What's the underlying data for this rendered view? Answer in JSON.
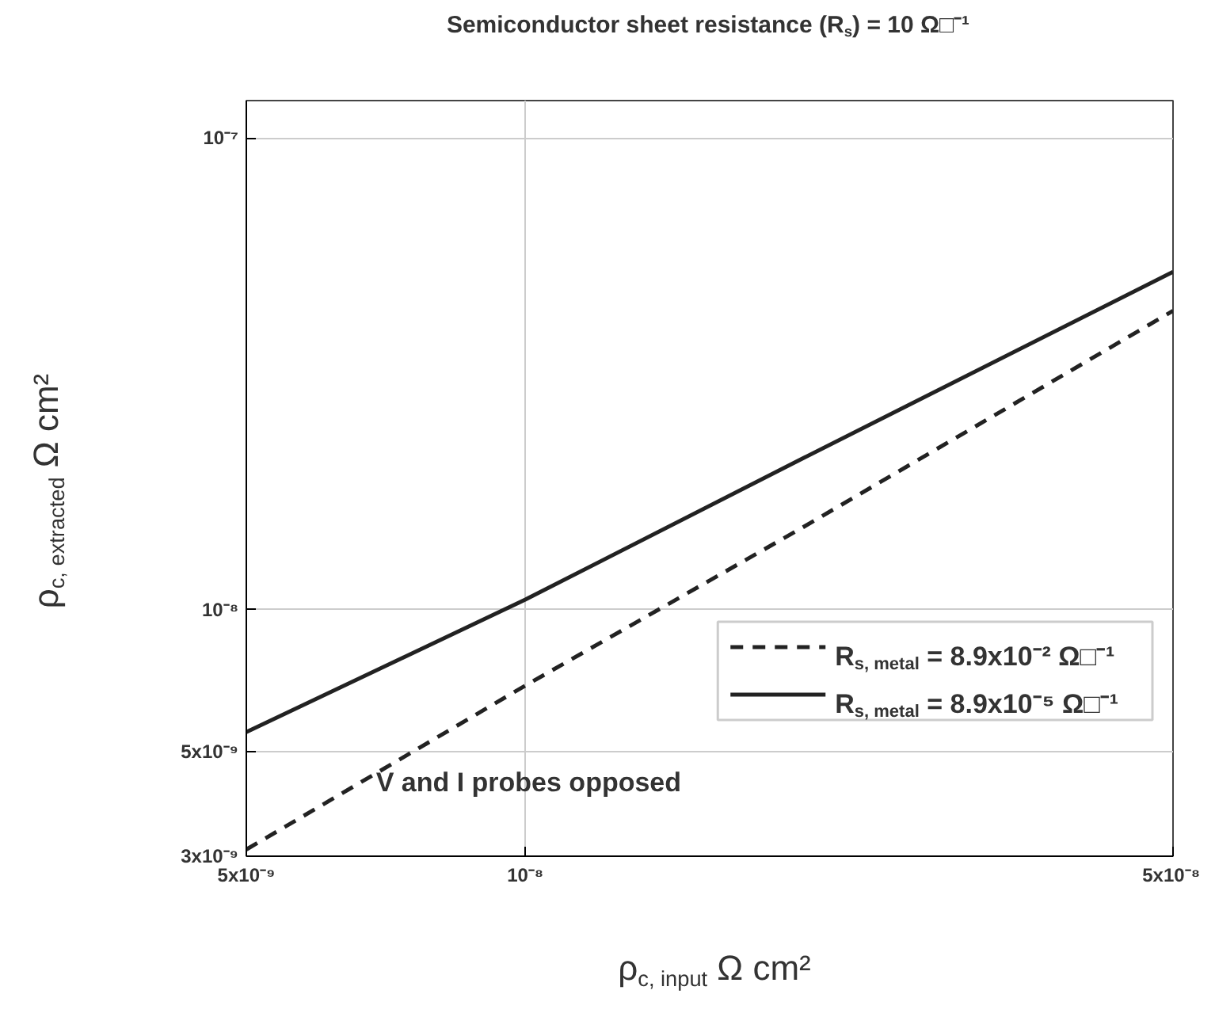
{
  "chart_data": {
    "type": "line",
    "title": "Semiconductor sheet resistance (R$_{s}$) = 10 Ω□⁻¹",
    "xlabel": "ρ$_{c, input}$ Ω cm²",
    "ylabel": "ρ$_{c, extracted}$ Ω cm²",
    "log": "xy",
    "xlim": [
      5e-09,
      5e-08
    ],
    "ylim": [
      3e-09,
      1.2e-07
    ],
    "xticks": [
      {
        "value": 5e-09,
        "label": "5x10⁻⁹"
      },
      {
        "value": 1e-08,
        "label": "10⁻⁸"
      },
      {
        "value": 5e-08,
        "label": "5x10⁻⁸"
      }
    ],
    "yticks": [
      {
        "value": 3e-09,
        "label": "3x10⁻⁹"
      },
      {
        "value": 5e-09,
        "label": "5x10⁻⁹"
      },
      {
        "value": 1e-08,
        "label": "10⁻⁸"
      },
      {
        "value": 1e-07,
        "label": "10⁻⁷"
      }
    ],
    "grid": true,
    "legend": "bottom right",
    "marker": "none",
    "x": [
      5e-09,
      1e-08,
      2e-08,
      5e-08
    ],
    "series": [
      {
        "name": "R$_{s, metal}$ = 8.9x10⁻² Ω□⁻¹",
        "color": "#222222",
        "line_style": "dashed",
        "values": [
          3.1e-09,
          6.9e-09,
          1.5e-08,
          4.3e-08
        ]
      },
      {
        "name": "R$_{s, metal}$ = 8.9x10⁻⁵ Ω□⁻¹",
        "color": "#222222",
        "line_style": "solid",
        "values": [
          5.5e-09,
          1.05e-08,
          2.1e-08,
          5.2e-08
        ]
      }
    ],
    "annotations": [
      {
        "text": "V and I probes opposed",
        "x": 6.9e-09,
        "y": 4.3e-09
      }
    ]
  }
}
